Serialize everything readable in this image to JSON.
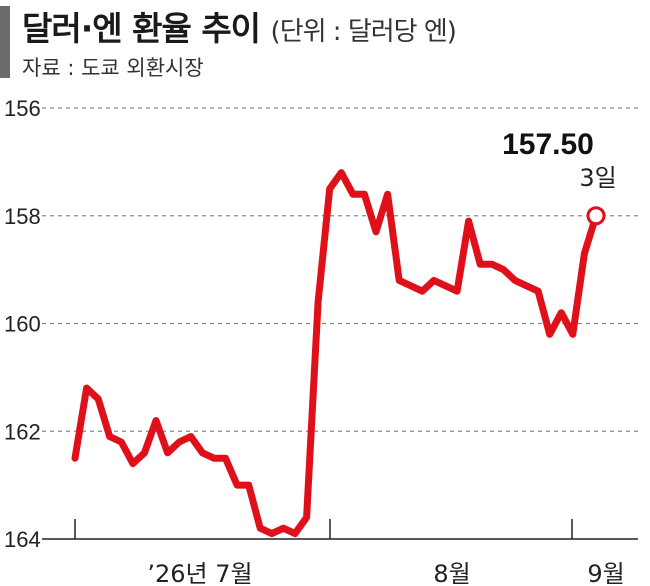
{
  "header": {
    "title": "달러·엔 환율 추이",
    "unit": "(단위 : 달러당 엔)",
    "source": "자료 : 도쿄 외환시장"
  },
  "chart_data": {
    "type": "line",
    "y_inverted": true,
    "ylim": [
      156,
      164
    ],
    "yticks": [
      "156",
      "158",
      "160",
      "162",
      "164"
    ],
    "y_grid": "dashed",
    "x_tick_labels": [
      "’26년 7월",
      "8월",
      "9월"
    ],
    "line_color": "#e0101b",
    "series": [
      {
        "values": [
          162.5,
          161.2,
          161.4,
          162.1,
          162.2,
          162.6,
          162.4,
          161.8,
          162.4,
          162.2,
          162.1,
          162.4,
          162.5,
          162.5,
          163.0,
          163.0,
          163.8,
          163.9,
          163.8,
          163.9,
          163.6,
          159.6,
          157.5,
          157.2,
          157.6,
          157.6,
          158.3,
          157.6,
          159.2,
          159.3,
          159.4,
          159.2,
          159.3,
          159.4,
          158.1,
          158.9,
          158.9,
          159.0,
          159.2,
          159.3,
          159.4,
          160.2,
          159.8,
          160.2,
          158.7,
          158.0
        ]
      }
    ],
    "annotation": {
      "value": "157.50",
      "label": "3일"
    }
  }
}
